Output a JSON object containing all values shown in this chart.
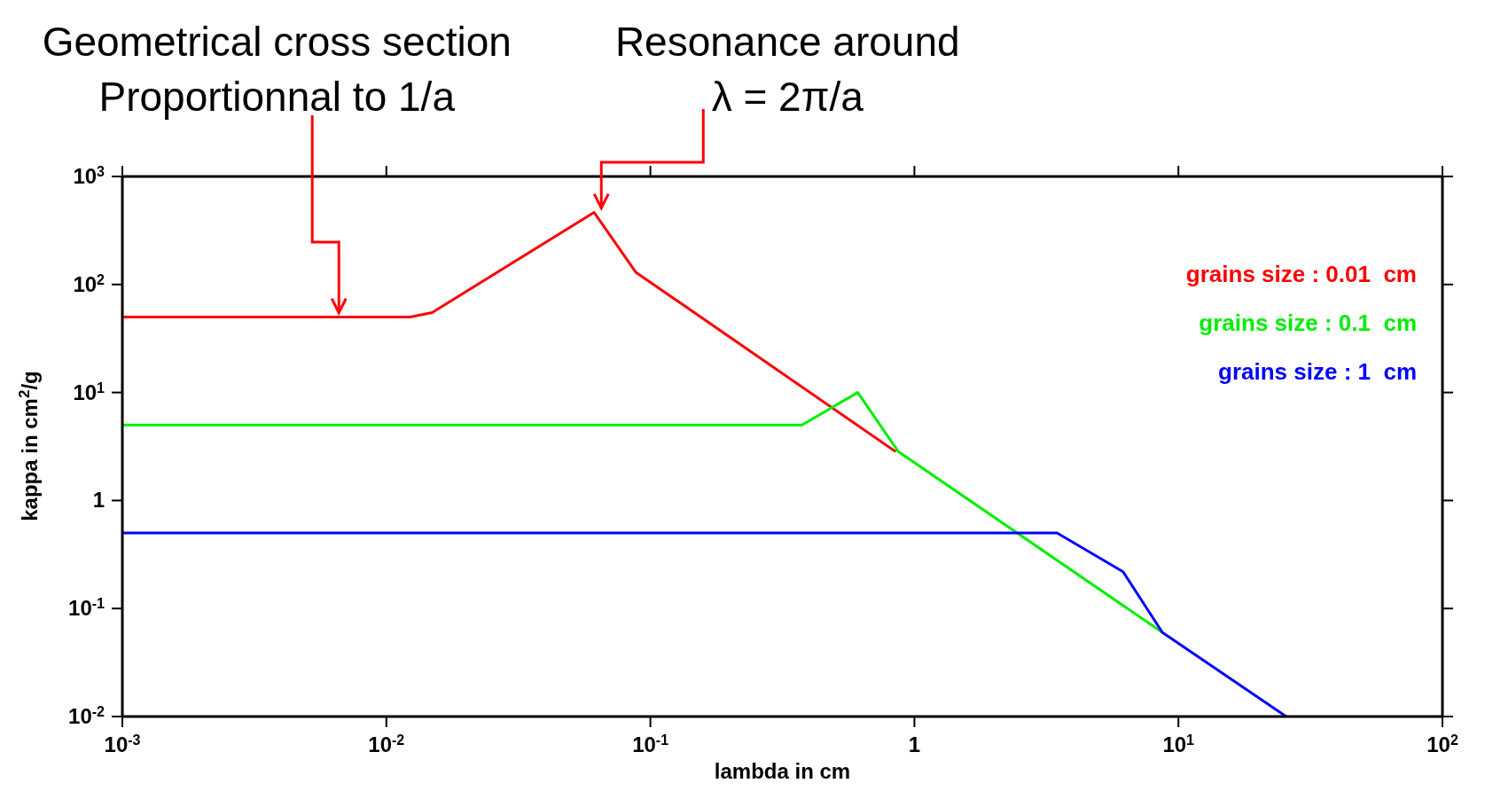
{
  "chart_data": {
    "type": "line",
    "xlabel": "lambda in cm",
    "ylabel": "kappa in cm$^{2}$/g",
    "log": "xy",
    "legend": "top right",
    "marker": "none",
    "line_style": "solid",
    "xlim": [
      0.001,
      100
    ],
    "ylim": [
      0.01,
      1000
    ],
    "xticks": [
      {
        "value": 0.001,
        "label": "10$^{-3}$"
      },
      {
        "value": 0.01,
        "label": "10$^{-2}$"
      },
      {
        "value": 0.1,
        "label": "10$^{-1}$"
      },
      1,
      {
        "value": 10,
        "label": "10$^{1}$"
      },
      {
        "value": 100,
        "label": "10$^{2}$"
      }
    ],
    "yticks": [
      {
        "value": 0.01,
        "label": "10$^{-2}$"
      },
      {
        "value": 0.1,
        "label": "10$^{-1}$"
      },
      1,
      {
        "value": 10,
        "label": "10$^{1}$"
      },
      {
        "value": 100,
        "label": "10$^{2}$"
      },
      {
        "value": 1000,
        "label": "10$^{3}$"
      }
    ],
    "series": [
      {
        "name": "grains size : 0.01  cm",
        "color": "#ff0000",
        "x": [
          0.001,
          0.0123,
          0.0149,
          0.0612,
          0.088,
          0.85
        ],
        "values": [
          50,
          50,
          55,
          465,
          130,
          2.83
        ]
      },
      {
        "name": "grains size : 0.1  cm",
        "color": "#00ee00",
        "x": [
          0.001,
          0.375,
          0.61,
          0.87,
          8.7
        ],
        "values": [
          5,
          5,
          10,
          2.83,
          0.06
        ]
      },
      {
        "name": "grains size : 1  cm",
        "color": "#0000ff",
        "x": [
          0.001,
          3.47,
          6.17,
          8.7,
          25.6
        ],
        "values": [
          0.5,
          0.5,
          0.219,
          0.06,
          0.01
        ]
      }
    ],
    "annotations": [
      {
        "text": "Geometrical cross section\nProportionnal to 1/a",
        "x": 0.0066,
        "y": 50
      },
      {
        "text": "Resonance around\nλ = 2π/a",
        "x": 0.065,
        "y": 465
      }
    ]
  }
}
